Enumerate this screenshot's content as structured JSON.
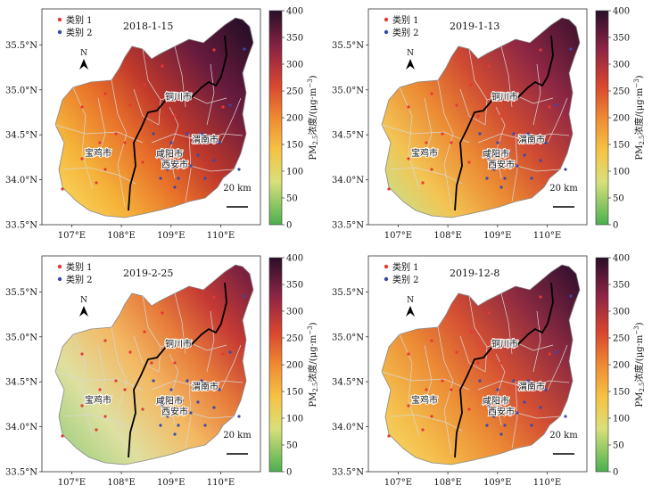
{
  "legend": {
    "class1": "类别 1",
    "class2": "类别 2",
    "color1": "#e53935",
    "color2": "#3949ab"
  },
  "north": "N",
  "scale_bar": "20 km",
  "colorbar": {
    "label_main": "PM",
    "label_sub": "2.5",
    "label_rest": "浓度/(μg·m",
    "label_sup": "−3",
    "label_end": ")",
    "ticks": [
      "0",
      "50",
      "100",
      "150",
      "200",
      "250",
      "300",
      "350",
      "400"
    ],
    "range": [
      0,
      400
    ]
  },
  "axes": {
    "x_ticks": [
      "107°E",
      "108°E",
      "109°E",
      "110°E"
    ],
    "y_ticks": [
      "35.5°N",
      "35.0°N",
      "34.5°N",
      "34.0°N",
      "33.5°N"
    ]
  },
  "cities": {
    "tongchuan": "铜川市",
    "weinan": "渭南市",
    "xianyang": "咸阳市",
    "xian": "西安市",
    "baoji": "宝鸡市"
  },
  "panels": [
    {
      "date": "2018-1-15",
      "theme": "severe"
    },
    {
      "date": "2019-1-13",
      "theme": "high"
    },
    {
      "date": "2019-2-25",
      "theme": "moderate"
    },
    {
      "date": "2019-12-8",
      "theme": "high-east"
    }
  ]
}
